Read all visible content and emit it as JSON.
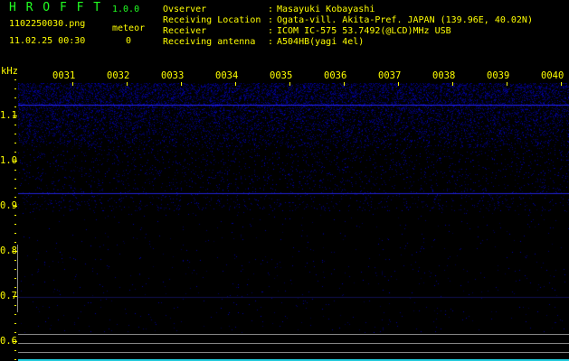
{
  "app": {
    "title": "H R O F F T",
    "version": "1.0.0"
  },
  "file": {
    "name": "1102250030.png",
    "datetime": "11.02.25 00:30"
  },
  "meteor": {
    "label": "meteor",
    "count": "0"
  },
  "info": [
    {
      "key": "Ovserver",
      "value": "Masayuki Kobayashi"
    },
    {
      "key": "Receiving Location",
      "value": "Ogata-vill. Akita-Pref. JAPAN (139.96E, 40.02N)"
    },
    {
      "key": "Receiver",
      "value": "ICOM IC-575 53.7492(@LCD)MHz USB"
    },
    {
      "key": "Receiving antenna",
      "value": "A504HB(yagi 4el)"
    }
  ],
  "axis": {
    "unit": "kHz",
    "freq_labels": [
      "1.1",
      "1.0",
      "0.9",
      "0.8",
      "0.7",
      "0.6"
    ],
    "time_labels": [
      "0031",
      "0032",
      "0033",
      "0034",
      "0035",
      "0036",
      "0037",
      "0038",
      "0039",
      "0040"
    ]
  },
  "colors": {
    "text": "#ffff00",
    "title": "#22ff22",
    "signal": "#2020ff",
    "background": "#000000"
  }
}
